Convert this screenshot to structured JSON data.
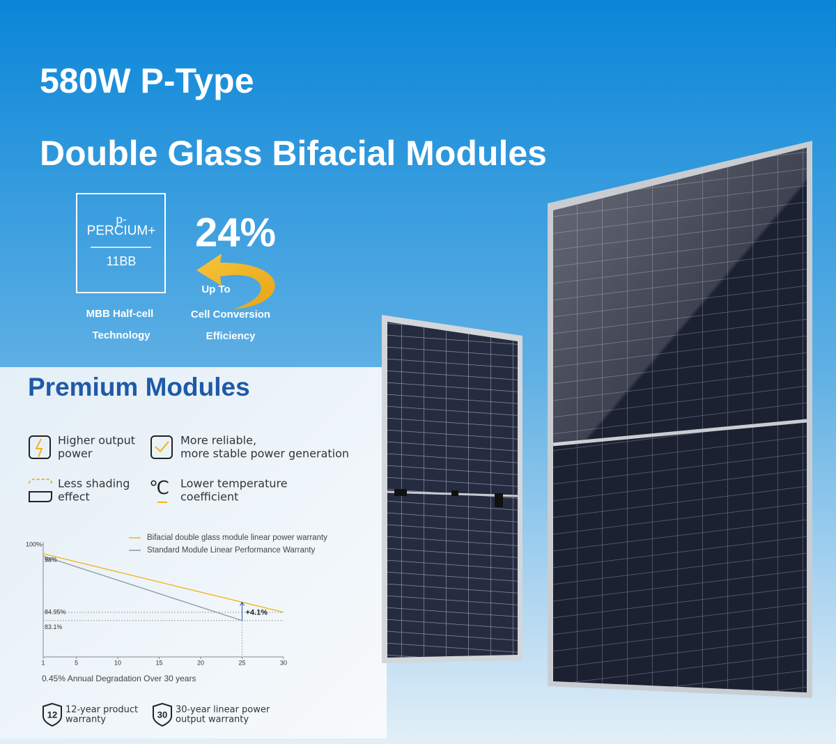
{
  "header": {
    "title": "580W P-Type",
    "subtitle": "Double Glass Bifacial Modules"
  },
  "badge": {
    "line1": "p-",
    "line2": "PERCIUM+",
    "line3": "11BB",
    "caption": [
      "MBB Half-cell",
      "Technology"
    ]
  },
  "efficiency": {
    "value": "24%",
    "prefix": "Up To",
    "caption": [
      "Cell Conversion",
      "Efficiency"
    ]
  },
  "premium": {
    "title": "Premium Modules",
    "features": [
      {
        "lines": [
          "Higher output",
          "power"
        ]
      },
      {
        "lines": [
          "More reliable,",
          "more stable power generation"
        ]
      },
      {
        "lines": [
          "Less shading",
          "effect"
        ]
      },
      {
        "icon": "℃",
        "lines": [
          "Lower temperature",
          "coefficient"
        ]
      }
    ]
  },
  "chart_data": {
    "type": "line",
    "x": [
      1,
      25,
      30
    ],
    "series": [
      {
        "name": "Bifacial double glass module linear power warranty",
        "color": "#f5b21b",
        "values": [
          98,
          87.2,
          84.95
        ]
      },
      {
        "name": "Standard Module Linear Performance Warranty",
        "color": "#8a96a8",
        "values": [
          97.5,
          83.1,
          null
        ]
      }
    ],
    "xlim": [
      1,
      30
    ],
    "xticks": [
      1,
      5,
      10,
      15,
      20,
      25,
      30
    ],
    "ylim": [
      75,
      100
    ],
    "yticks": [
      {
        "value": 100,
        "label": "100%"
      }
    ],
    "xlabel": "0.45% Annual Degradation Over 30 years",
    "annotations": [
      {
        "value": 98,
        "label": "98%"
      },
      {
        "value": 84.95,
        "label": "84.95%"
      },
      {
        "value": 83.1,
        "label": "83.1%"
      },
      {
        "value": 4.1,
        "label": "+4.1%"
      }
    ],
    "legend": "top-right"
  },
  "warranties": [
    {
      "icon": "12",
      "lines": [
        "12-year product",
        "warranty"
      ]
    },
    {
      "icon": "30",
      "lines": [
        "30-year linear power",
        "output warranty"
      ]
    }
  ]
}
